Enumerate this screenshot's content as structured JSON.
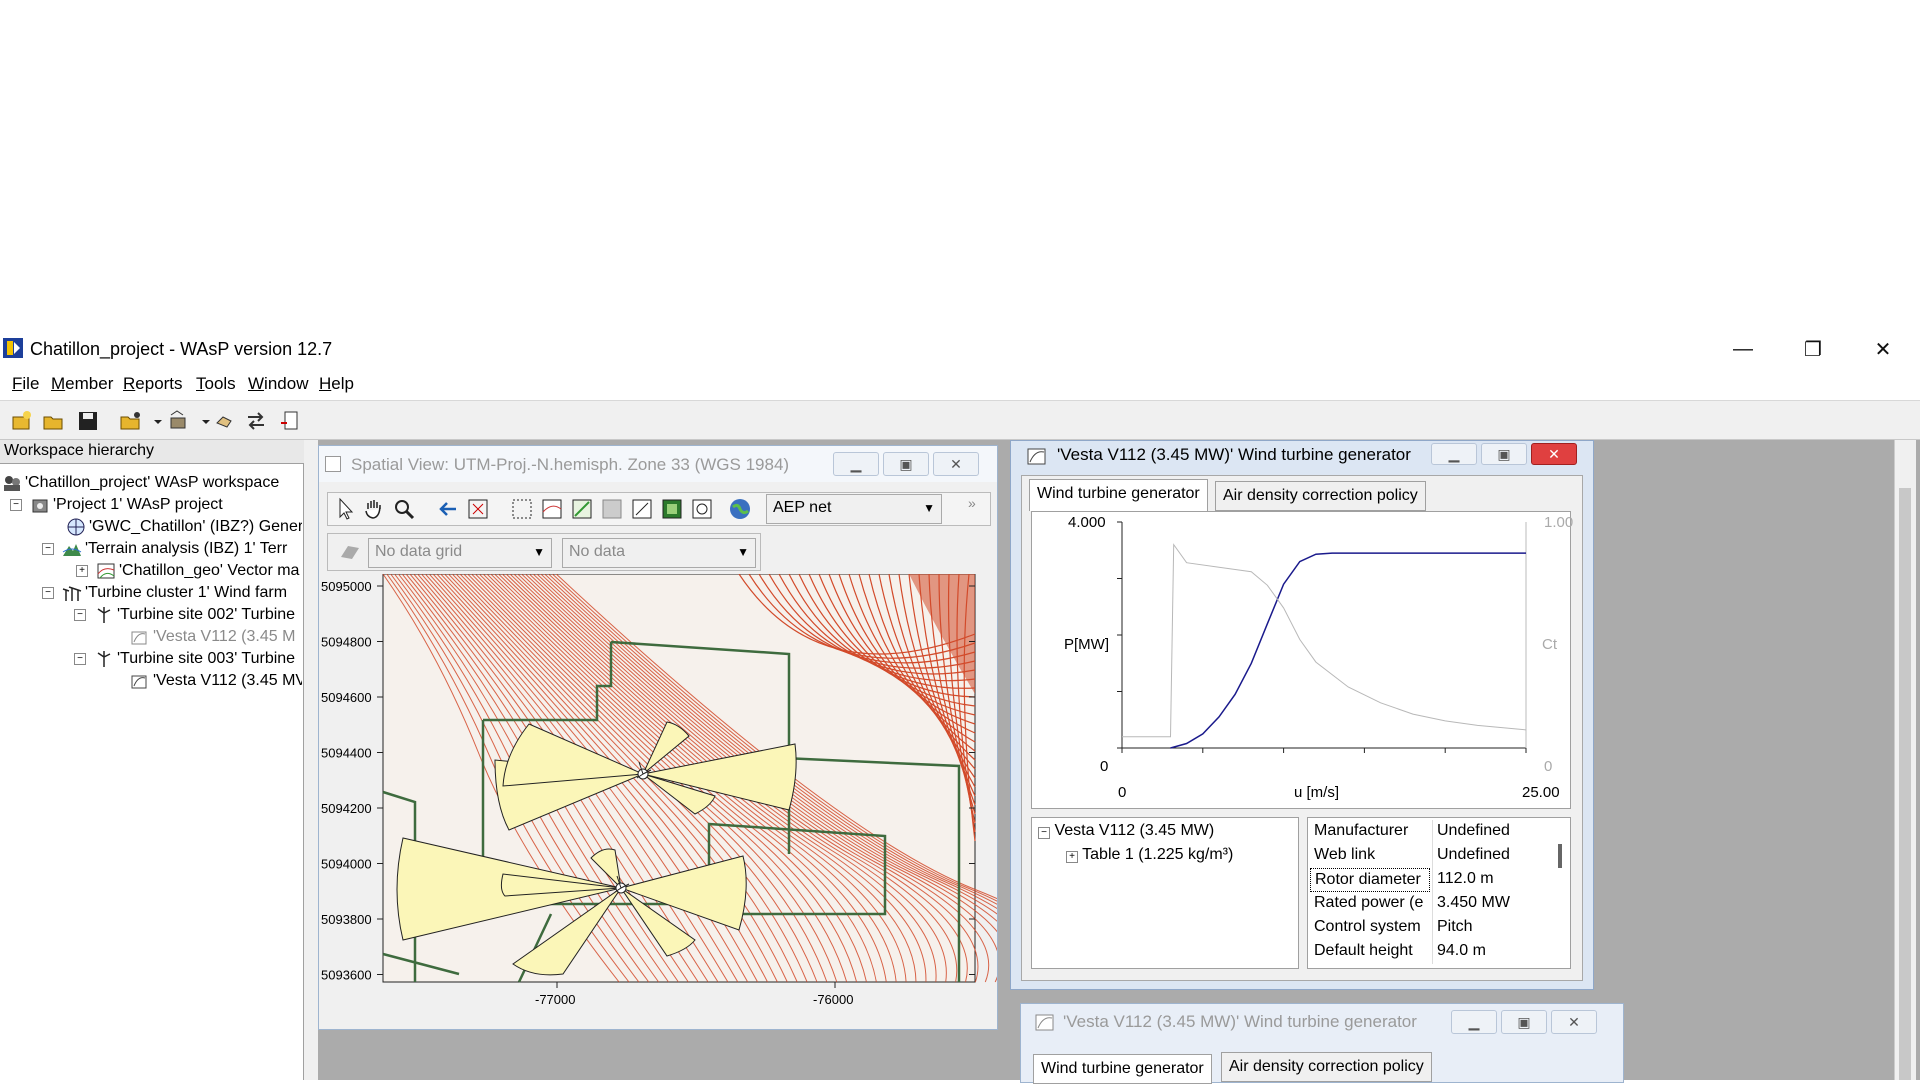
{
  "window": {
    "title": "Chatillon_project - WAsP version 12.7",
    "minimize": "—",
    "restore": "❐",
    "close": "✕"
  },
  "menu": [
    {
      "label": "File",
      "key": "F",
      "rest": "ile"
    },
    {
      "label": "Member",
      "key": "M",
      "rest": "ember"
    },
    {
      "label": "Reports",
      "key": "R",
      "rest": "eports"
    },
    {
      "label": "Tools",
      "key": "T",
      "rest": "ools"
    },
    {
      "label": "Window",
      "key": "W",
      "rest": "indow"
    },
    {
      "label": "Help",
      "key": "H",
      "rest": "elp"
    }
  ],
  "workspace": {
    "header": "Workspace hierarchy",
    "items": [
      {
        "label": "'Chatillon_project' WAsP workspace",
        "toggle": ""
      },
      {
        "label": "'Project 1' WAsP project",
        "toggle": "−"
      },
      {
        "label": "'GWC_Chatillon' (IBZ?) Gener",
        "toggle": ""
      },
      {
        "label": "'Terrain analysis (IBZ) 1' Terr",
        "toggle": "−"
      },
      {
        "label": "'Chatillon_geo' Vector ma",
        "toggle": "+"
      },
      {
        "label": "'Turbine cluster 1' Wind farm",
        "toggle": "−"
      },
      {
        "label": "'Turbine site 002' Turbine",
        "toggle": "−"
      },
      {
        "label": "'Vesta V112 (3.45 M",
        "toggle": ""
      },
      {
        "label": "'Turbine site 003' Turbine",
        "toggle": "−"
      },
      {
        "label": "'Vesta V112 (3.45 MV",
        "toggle": ""
      }
    ]
  },
  "spatial_view": {
    "title": "Spatial View: UTM-Proj.-N.hemisph. Zone 33 (WGS 1984)",
    "layer_select": "AEP net",
    "grid_select": "No data grid",
    "data_select": "No data",
    "y_ticks": [
      "5095000",
      "5094800",
      "5094600",
      "5094400",
      "5094200",
      "5094000",
      "5093800",
      "5093600"
    ],
    "x_ticks": [
      "-77000",
      "-76000"
    ]
  },
  "turbine_window": {
    "title": "'Vesta V112 (3.45 MW)' Wind turbine generator",
    "tabs": [
      "Wind turbine generator",
      "Air density correction policy"
    ],
    "chart": {
      "y_left_max": "4.000",
      "y_left_min": "0",
      "y_left_label": "P[MW]",
      "y_right_max": "1.00",
      "y_right_min": "0",
      "y_right_label": "Ct",
      "x_min": "0",
      "x_max": "25.00",
      "x_label": "u [m/s]"
    },
    "tree": {
      "root": "Vesta V112 (3.45 MW)",
      "child": "Table 1 (1.225 kg/m³)"
    },
    "properties": [
      {
        "name": "Manufacturer",
        "value": "Undefined"
      },
      {
        "name": "Web link",
        "value": "Undefined"
      },
      {
        "name": "Rotor diameter",
        "value": "112.0 m"
      },
      {
        "name": "Rated power (e",
        "value": "3.450 MW"
      },
      {
        "name": "Control system",
        "value": "Pitch"
      },
      {
        "name": "Default height",
        "value": "94.0 m"
      }
    ]
  },
  "turbine_window_2": {
    "title": "'Vesta V112 (3.45 MW)' Wind turbine generator",
    "tabs": [
      "Wind turbine generator",
      "Air density correction policy"
    ]
  },
  "chart_data": {
    "type": "line",
    "xlabel": "u [m/s]",
    "ylabel": "P[MW]",
    "xlim": [
      0,
      25
    ],
    "ylim": [
      0,
      4
    ],
    "y2lim": [
      0,
      1
    ],
    "series": [
      {
        "name": "P[MW]",
        "color": "#1a1a8c",
        "x": [
          3,
          4,
          5,
          6,
          7,
          8,
          9,
          10,
          11,
          12,
          13,
          25
        ],
        "y": [
          0,
          0.08,
          0.25,
          0.55,
          0.95,
          1.5,
          2.2,
          2.9,
          3.3,
          3.43,
          3.45,
          3.45
        ]
      },
      {
        "name": "Ct",
        "color": "#b8b8b8",
        "x": [
          0,
          3,
          3.2,
          4,
          6,
          8,
          9,
          10,
          11,
          12,
          14,
          16,
          18,
          20,
          22,
          25
        ],
        "y": [
          0.05,
          0.05,
          0.9,
          0.82,
          0.8,
          0.78,
          0.72,
          0.62,
          0.48,
          0.38,
          0.27,
          0.2,
          0.15,
          0.12,
          0.1,
          0.08
        ]
      }
    ]
  },
  "colors": {
    "contours": "#d24a2a",
    "roses": "#fbf6b8",
    "boundaries": "#3e6b3e",
    "title_close": "#e04040"
  }
}
